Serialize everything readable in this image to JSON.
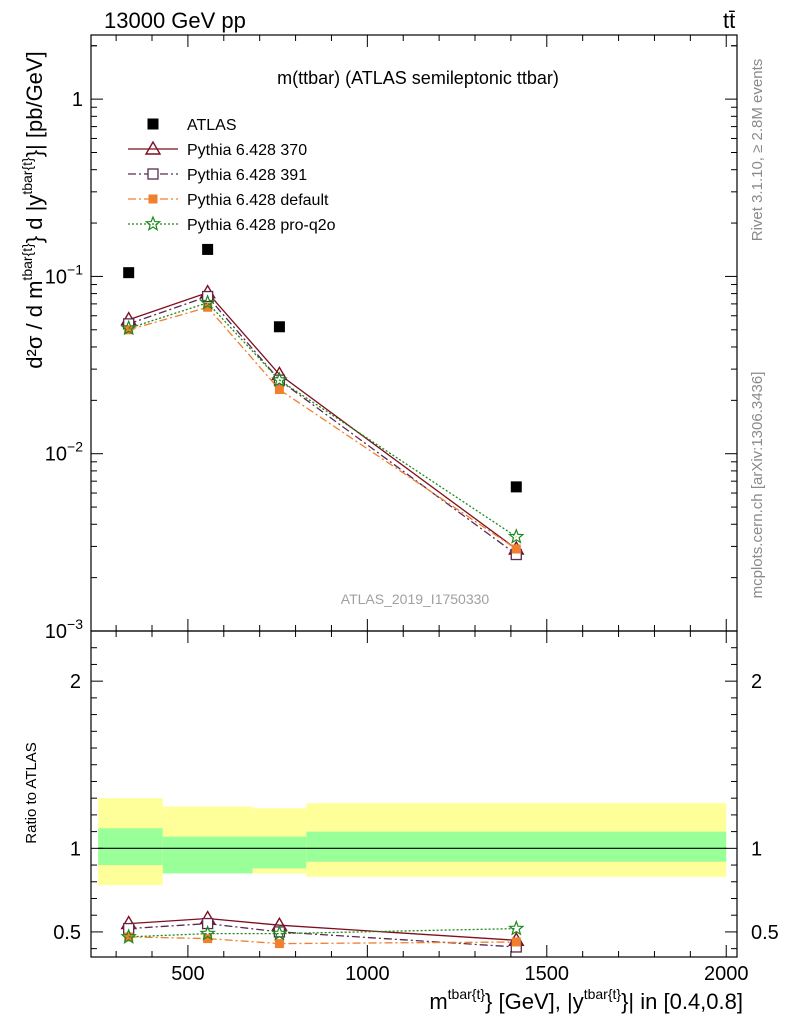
{
  "header": {
    "left": "13000 GeV pp",
    "right": "tt̄"
  },
  "side_labels": {
    "rivet": "Rivet 3.1.10, ≥ 2.8M events",
    "mcplots": "mcplots.cern.ch [arXiv:1306.3436]"
  },
  "watermark": "ATLAS_2019_I1750330",
  "colors": {
    "atlas": "#000000",
    "p370": "#7f0f1e",
    "p391": "#5a2a52",
    "pdefault": "#f07f2f",
    "pq2o": "#1a8a1a",
    "band_inner": "#99ff99",
    "band_outer": "#ffff99"
  },
  "chart_data": [
    {
      "type": "scatter",
      "title": "m(ttbar) (ATLAS semileptonic ttbar)",
      "ylabel": {
        "main": "d²σ / d m",
        "sup": "tbar{t}",
        "mid": "} d |y",
        "sup2": "tbar{t}",
        "tail": "}| [pb/GeV]"
      },
      "yscale": "log",
      "ylim": [
        0.001,
        2.3
      ],
      "xlim": [
        230,
        2030
      ],
      "yticks": [
        {
          "v": 1,
          "base": "1",
          "exp": ""
        },
        {
          "v": 0.1,
          "base": "10",
          "exp": "−1"
        },
        {
          "v": 0.01,
          "base": "10",
          "exp": "−2"
        },
        {
          "v": 0.001,
          "base": "10",
          "exp": "−3"
        }
      ],
      "legend_position": "top-left",
      "series": [
        {
          "name": "ATLAS",
          "key": "atlas",
          "marker": "square",
          "x": [
            335,
            555,
            755,
            1415
          ],
          "y": [
            0.105,
            0.142,
            0.052,
            0.0065
          ]
        },
        {
          "name": "Pythia 6.428 370",
          "key": "p370",
          "marker": "triangle",
          "line": "solid",
          "x": [
            335,
            555,
            755,
            1415
          ],
          "y": [
            0.057,
            0.081,
            0.028,
            0.0029
          ]
        },
        {
          "name": "Pythia 6.428 391",
          "key": "p391",
          "marker": "open-square",
          "line": "dashdot",
          "x": [
            335,
            555,
            755,
            1415
          ],
          "y": [
            0.054,
            0.077,
            0.026,
            0.0027
          ]
        },
        {
          "name": "Pythia 6.428 default",
          "key": "pdefault",
          "marker": "filled-square",
          "line": "dashdot",
          "x": [
            335,
            555,
            755,
            1415
          ],
          "y": [
            0.05,
            0.067,
            0.023,
            0.0029
          ]
        },
        {
          "name": "Pythia 6.428 pro-q2o",
          "key": "pq2o",
          "marker": "star",
          "line": "dotted",
          "x": [
            335,
            555,
            755,
            1415
          ],
          "y": [
            0.051,
            0.071,
            0.026,
            0.0034
          ]
        }
      ]
    },
    {
      "type": "line",
      "ylabel": "Ratio to ATLAS",
      "xlabel": {
        "m": "m",
        "sup1": "tbar{t}",
        "mid": "} [GeV], |y",
        "sup2": "tbar{t}",
        "tail": "}| in [0.4,0.8]"
      },
      "ylim": [
        0.35,
        2.3
      ],
      "xlim": [
        230,
        2030
      ],
      "yticks": [
        0.5,
        1,
        2
      ],
      "xticks": [
        500,
        1000,
        1500,
        2000
      ],
      "bands": [
        {
          "x0": 250,
          "x1": 430,
          "inner": [
            0.9,
            1.12
          ],
          "outer": [
            0.78,
            1.3
          ]
        },
        {
          "x0": 430,
          "x1": 680,
          "inner": [
            0.85,
            1.07
          ],
          "outer": [
            0.85,
            1.25
          ]
        },
        {
          "x0": 680,
          "x1": 830,
          "inner": [
            0.88,
            1.07
          ],
          "outer": [
            0.85,
            1.24
          ]
        },
        {
          "x0": 830,
          "x1": 2000,
          "inner": [
            0.92,
            1.1
          ],
          "outer": [
            0.83,
            1.27
          ]
        }
      ],
      "series": [
        {
          "name": "Pythia 6.428 370",
          "key": "p370",
          "x": [
            335,
            555,
            755,
            1415
          ],
          "y": [
            0.55,
            0.58,
            0.54,
            0.45
          ]
        },
        {
          "name": "Pythia 6.428 391",
          "key": "p391",
          "x": [
            335,
            555,
            755,
            1415
          ],
          "y": [
            0.52,
            0.55,
            0.5,
            0.41
          ]
        },
        {
          "name": "Pythia 6.428 default",
          "key": "pdefault",
          "x": [
            335,
            555,
            755,
            1415
          ],
          "y": [
            0.47,
            0.46,
            0.43,
            0.44
          ]
        },
        {
          "name": "Pythia 6.428 pro-q2o",
          "key": "pq2o",
          "x": [
            335,
            555,
            755,
            1415
          ],
          "y": [
            0.47,
            0.49,
            0.49,
            0.52
          ]
        }
      ]
    }
  ]
}
